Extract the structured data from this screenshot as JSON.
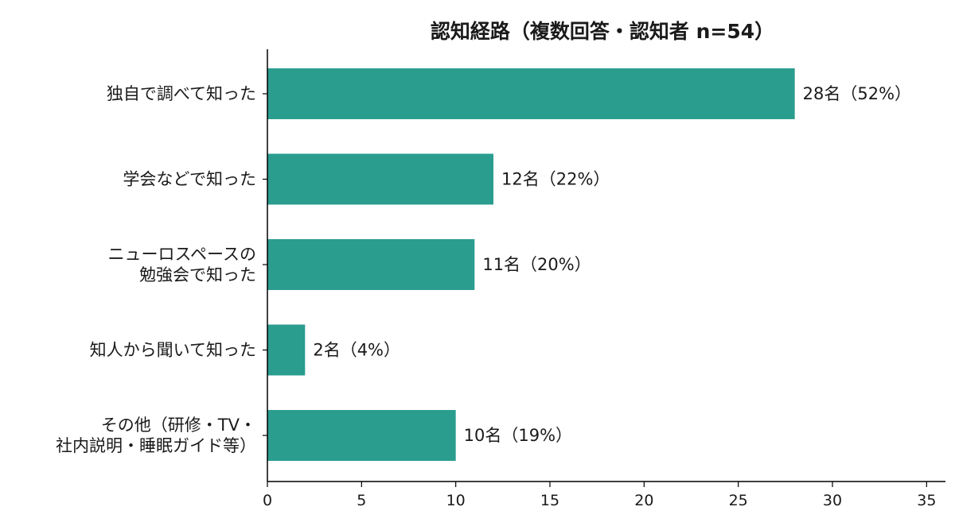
{
  "chart_data": {
    "type": "bar",
    "orientation": "horizontal",
    "title": "認知経路（複数回答・認知者 n=54）",
    "xlabel": "",
    "ylabel": "",
    "categories": [
      [
        "独自で調べて知った"
      ],
      [
        "学会などで知った"
      ],
      [
        "ニューロスペースの",
        "勉強会で知った"
      ],
      [
        "知人から聞いて知った"
      ],
      [
        "その他（研修・TV・",
        "社内説明・睡眠ガイド等）"
      ]
    ],
    "values": [
      28,
      12,
      11,
      2,
      10
    ],
    "data_labels": [
      "28名（52%）",
      "12名（22%）",
      "11名（20%）",
      "2名（4%）",
      "10名（19%）"
    ],
    "xlim": [
      0,
      36
    ],
    "xticks": [
      0,
      5,
      10,
      15,
      20,
      25,
      30,
      35
    ],
    "bar_color": "#2a9d8f",
    "grid": false,
    "legend": "none"
  }
}
